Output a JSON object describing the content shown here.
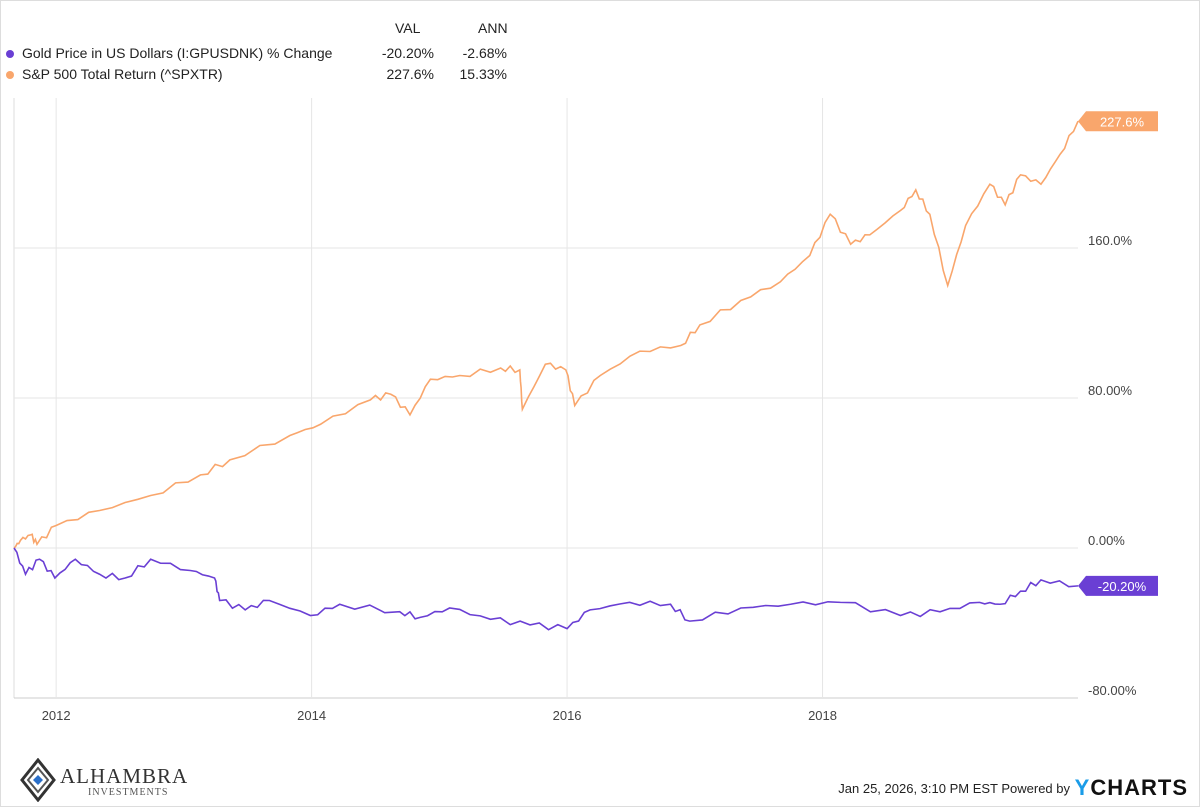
{
  "legend": {
    "headers": {
      "val": "VAL",
      "ann": "ANN"
    },
    "series": [
      {
        "name": "Gold Price in US Dollars (I:GPUSDNK) % Change",
        "val": "-20.20%",
        "ann": "-2.68%",
        "color": "#6a3fd4"
      },
      {
        "name": "S&P 500 Total Return (^SPXTR)",
        "val": "227.6%",
        "ann": "15.33%",
        "color": "#f9a66c"
      }
    ]
  },
  "chart_data": {
    "type": "line",
    "xlim": [
      2011.67,
      2020.0
    ],
    "ylim": [
      -80,
      240
    ],
    "x_ticks": [
      2012,
      2014,
      2016,
      2018
    ],
    "x_tick_labels": [
      "2012",
      "2014",
      "2016",
      "2018"
    ],
    "y_ticks": [
      -80,
      0,
      80,
      160
    ],
    "y_tick_labels": [
      "-80.00%",
      "0.00%",
      "80.00%",
      "160.0%"
    ],
    "grid": true,
    "series": [
      {
        "name": "S&P 500 Total Return (^SPXTR)",
        "end_label": "227.6%",
        "color": "#f9a66c",
        "points": [
          [
            2011.67,
            0
          ],
          [
            2011.72,
            4
          ],
          [
            2011.8,
            7
          ],
          [
            2011.85,
            2
          ],
          [
            2012.0,
            12
          ],
          [
            2012.34,
            20
          ],
          [
            2012.74,
            28
          ],
          [
            2013.13,
            39
          ],
          [
            2013.36,
            47
          ],
          [
            2013.83,
            60
          ],
          [
            2014.07,
            66
          ],
          [
            2014.46,
            79
          ],
          [
            2014.62,
            82
          ],
          [
            2014.77,
            71
          ],
          [
            2014.93,
            90
          ],
          [
            2015.16,
            92
          ],
          [
            2015.48,
            96
          ],
          [
            2015.63,
            95
          ],
          [
            2015.65,
            74
          ],
          [
            2015.83,
            98
          ],
          [
            2015.99,
            95
          ],
          [
            2016.06,
            76
          ],
          [
            2016.26,
            92
          ],
          [
            2016.57,
            105
          ],
          [
            2016.89,
            108
          ],
          [
            2017.04,
            119
          ],
          [
            2017.36,
            132
          ],
          [
            2017.67,
            142
          ],
          [
            2017.9,
            156
          ],
          [
            2018.06,
            178
          ],
          [
            2018.22,
            162
          ],
          [
            2018.37,
            167
          ],
          [
            2018.61,
            180
          ],
          [
            2018.73,
            191
          ],
          [
            2018.84,
            178
          ],
          [
            2018.98,
            140
          ],
          [
            2019.12,
            172
          ],
          [
            2019.31,
            194
          ],
          [
            2019.43,
            183
          ],
          [
            2019.55,
            199
          ],
          [
            2019.71,
            194
          ],
          [
            2019.86,
            210
          ],
          [
            2020.0,
            227.6
          ]
        ]
      },
      {
        "name": "Gold Price in US Dollars (I:GPUSDNK) % Change",
        "end_label": "-20.20%",
        "color": "#6a3fd4",
        "points": [
          [
            2011.67,
            0
          ],
          [
            2011.76,
            -14
          ],
          [
            2011.87,
            -6
          ],
          [
            2011.99,
            -16
          ],
          [
            2012.15,
            -6
          ],
          [
            2012.34,
            -14
          ],
          [
            2012.54,
            -16
          ],
          [
            2012.74,
            -6
          ],
          [
            2013.05,
            -12
          ],
          [
            2013.24,
            -16
          ],
          [
            2013.28,
            -28
          ],
          [
            2013.48,
            -33
          ],
          [
            2013.67,
            -28
          ],
          [
            2013.99,
            -36
          ],
          [
            2014.22,
            -30
          ],
          [
            2014.69,
            -34
          ],
          [
            2014.85,
            -37
          ],
          [
            2015.08,
            -32
          ],
          [
            2015.4,
            -38
          ],
          [
            2015.71,
            -41
          ],
          [
            2016.0,
            -43
          ],
          [
            2016.18,
            -33
          ],
          [
            2016.49,
            -29
          ],
          [
            2016.81,
            -30
          ],
          [
            2016.96,
            -39
          ],
          [
            2017.36,
            -32
          ],
          [
            2017.75,
            -30
          ],
          [
            2018.14,
            -29
          ],
          [
            2018.61,
            -36
          ],
          [
            2018.92,
            -34
          ],
          [
            2019.23,
            -29
          ],
          [
            2019.39,
            -30
          ],
          [
            2019.55,
            -23
          ],
          [
            2019.71,
            -17
          ],
          [
            2020.0,
            -20.2
          ]
        ]
      }
    ]
  },
  "footer": {
    "timestamp": "Jan 25, 2026, 3:10 PM EST Powered by",
    "brand_y": "Y",
    "brand_rest": "CHARTS",
    "logo_title": "ALHAMBRA",
    "logo_sub": "INVESTMENTS"
  }
}
